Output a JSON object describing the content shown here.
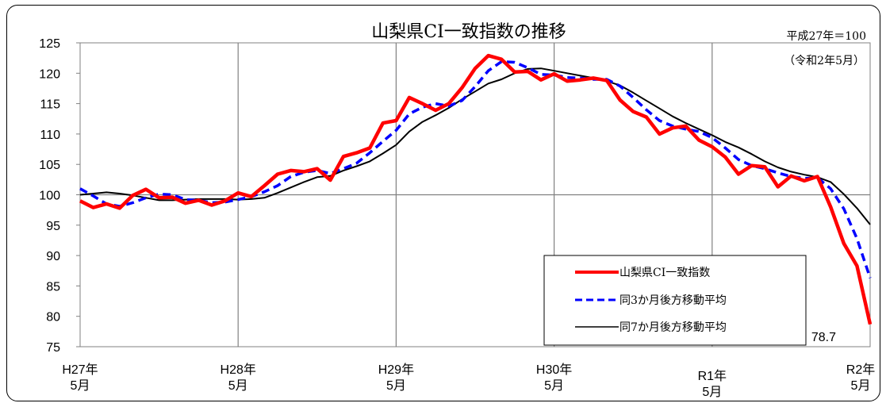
{
  "chart_data": {
    "type": "line",
    "title": "山梨県CI一致指数の推移",
    "note_base": "平成27年＝100",
    "note_date": "（令和2年5月）",
    "ylim": [
      75,
      125
    ],
    "yticks": [
      125,
      120,
      115,
      110,
      105,
      100,
      95,
      90,
      85,
      80,
      75
    ],
    "x_month_range": [
      0,
      60
    ],
    "xtick_positions": [
      0,
      12,
      24,
      36,
      48,
      60
    ],
    "xticks": [
      {
        "line1": "H27年",
        "line2": "5月"
      },
      {
        "line1": "H28年",
        "line2": "5月"
      },
      {
        "line1": "H29年",
        "line2": "5月"
      },
      {
        "line1": "H30年",
        "line2": "5月"
      },
      {
        "line1": "R1年",
        "line2": "5月"
      },
      {
        "line1": "R2年",
        "line2": "5月"
      }
    ],
    "grid": true,
    "legend_position": "bottom-right",
    "end_label": "78.7",
    "series": [
      {
        "name": "山梨県CI一致指数",
        "color": "#ff0000",
        "style": "solid-thick",
        "values": [
          99.0,
          97.9,
          98.5,
          97.8,
          99.9,
          100.9,
          99.5,
          99.6,
          98.6,
          99.1,
          98.3,
          99.0,
          100.3,
          99.7,
          101.5,
          103.4,
          104.0,
          103.8,
          104.3,
          102.4,
          106.3,
          106.9,
          107.7,
          111.8,
          112.2,
          116.0,
          115.0,
          113.9,
          115.0,
          117.6,
          120.8,
          122.9,
          122.3,
          120.2,
          120.3,
          118.9,
          119.9,
          118.7,
          118.9,
          119.2,
          118.8,
          115.6,
          113.7,
          112.8,
          110.0,
          111.0,
          111.3,
          109.0,
          107.9,
          106.2,
          103.4,
          104.8,
          104.6,
          101.3,
          103.1,
          102.3,
          103.0,
          98.0,
          92.0,
          88.3,
          78.7
        ]
      },
      {
        "name": "同3か月後方移動平均",
        "color": "#0000ff",
        "style": "dashed",
        "values": [
          101.0,
          99.8,
          98.5,
          98.1,
          98.7,
          99.5,
          100.1,
          100.0,
          99.2,
          99.1,
          98.7,
          98.8,
          99.2,
          99.7,
          100.5,
          101.5,
          103.0,
          103.7,
          104.0,
          103.5,
          104.3,
          105.2,
          106.9,
          108.8,
          110.6,
          113.3,
          114.4,
          115.0,
          114.6,
          115.5,
          117.8,
          120.4,
          121.9,
          121.8,
          120.9,
          119.8,
          119.7,
          119.3,
          119.2,
          119.0,
          119.0,
          117.9,
          116.0,
          114.0,
          112.2,
          111.3,
          110.8,
          110.4,
          109.4,
          107.7,
          105.8,
          104.8,
          104.3,
          103.6,
          103.0,
          102.7,
          102.8,
          101.0,
          97.7,
          92.8,
          86.3
        ]
      },
      {
        "name": "同7か月後方移動平均",
        "color": "#000000",
        "style": "solid-thin",
        "values": [
          100.0,
          100.2,
          100.4,
          100.2,
          99.9,
          99.5,
          99.1,
          99.1,
          99.2,
          99.3,
          99.3,
          99.3,
          99.2,
          99.3,
          99.5,
          100.3,
          101.2,
          102.1,
          102.9,
          103.1,
          104.0,
          104.7,
          105.5,
          106.8,
          108.2,
          110.4,
          112.0,
          113.1,
          114.3,
          115.7,
          117.0,
          118.3,
          119.0,
          120.0,
          120.7,
          120.8,
          120.4,
          120.0,
          119.6,
          119.2,
          118.7,
          118.0,
          116.8,
          115.5,
          114.2,
          112.9,
          111.8,
          110.8,
          109.8,
          108.7,
          107.8,
          106.7,
          105.5,
          104.5,
          103.8,
          103.3,
          102.9,
          102.1,
          100.1,
          97.8,
          95.1
        ]
      }
    ]
  }
}
